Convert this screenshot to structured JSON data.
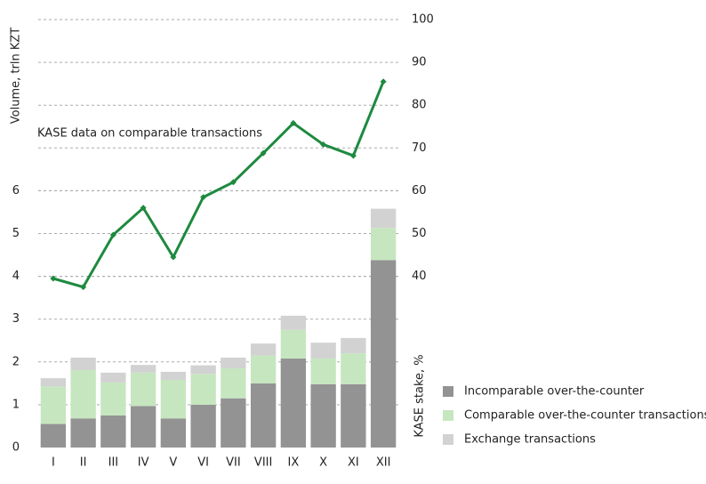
{
  "chart_data": {
    "type": "bar",
    "y_label": "Volume, trln KZT",
    "y2_label": "KASE stake, %",
    "annotation": "KASE data on comparable transactions",
    "categories": [
      "I",
      "II",
      "III",
      "IV",
      "V",
      "VI",
      "VII",
      "VIII",
      "IX",
      "X",
      "XI",
      "XII"
    ],
    "series": [
      {
        "name": "Incomparable over-the-counter",
        "color": "#939393",
        "values": [
          0.55,
          0.68,
          0.75,
          0.97,
          0.68,
          1.0,
          1.15,
          1.5,
          2.08,
          1.48,
          1.48,
          4.38
        ]
      },
      {
        "name": "Comparable over-the-counter transactions",
        "color": "#c6e6bf",
        "values": [
          0.88,
          1.13,
          0.77,
          0.78,
          0.9,
          0.72,
          0.7,
          0.65,
          0.67,
          0.6,
          0.72,
          0.75
        ]
      },
      {
        "name": "Exchange transactions",
        "color": "#d2d2d2",
        "values": [
          0.19,
          0.29,
          0.23,
          0.18,
          0.19,
          0.2,
          0.25,
          0.28,
          0.33,
          0.37,
          0.36,
          0.45
        ]
      },
      {
        "type": "line",
        "axis": "y2",
        "color": "#1d8a3f",
        "values": [
          39.5,
          37.5,
          49.7,
          56,
          44.5,
          58.5,
          62,
          68.8,
          75.8,
          70.8,
          68.2,
          85.5
        ]
      }
    ],
    "ylim": [
      0,
      10
    ],
    "yticks": [
      0,
      1,
      2,
      3,
      4,
      5,
      6
    ],
    "y2lim": [
      0,
      100
    ],
    "y2ticks": [
      40,
      50,
      60,
      70,
      80,
      90,
      100
    ],
    "grid": true,
    "stacked": true
  }
}
